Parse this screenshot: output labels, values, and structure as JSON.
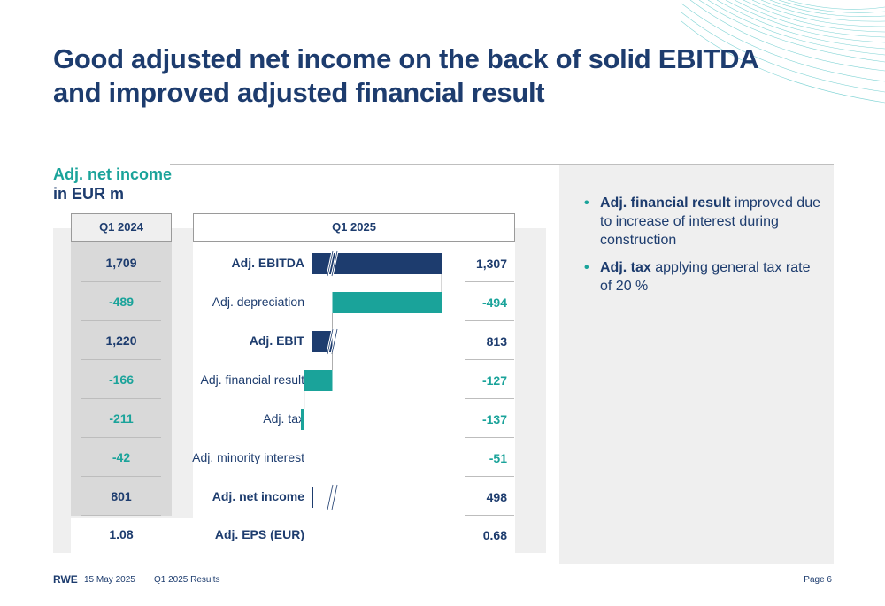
{
  "title_line1": "Good adjusted net income on the back of solid EBITDA",
  "title_line2": "and improved adjusted financial result",
  "subhead_line1": "Adj. net income",
  "subhead_line2": "in EUR m",
  "colors": {
    "navy": "#1d3c6e",
    "teal": "#1aa39a"
  },
  "chart_data": {
    "type": "bar",
    "subtype": "waterfall",
    "unit": "EUR m",
    "col_q24": "Q1 2024",
    "col_q25": "Q1 2025",
    "categories": [
      "Adj. EBITDA",
      "Adj. depreciation",
      "Adj. EBIT",
      "Adj. financial result",
      "Adj. tax",
      "Adj. minority interest",
      "Adj. net income"
    ],
    "bold_categories": [
      "Adj. EBITDA",
      "Adj. EBIT",
      "Adj. net income"
    ],
    "series": [
      {
        "name": "Q1 2024",
        "values": [
          1709,
          -489,
          1220,
          -166,
          -211,
          -42,
          801
        ],
        "labels": [
          "1,709",
          "-489",
          "1,220",
          "-166",
          "-211",
          "-42",
          "801"
        ]
      },
      {
        "name": "Q1 2025",
        "values": [
          1307,
          -494,
          813,
          -127,
          -137,
          -51,
          498
        ],
        "labels": [
          "1,307",
          "-494",
          "813",
          "-127",
          "-137",
          "-51",
          "498"
        ]
      }
    ],
    "totals": [
      true,
      false,
      true,
      false,
      false,
      false,
      true
    ],
    "axis_break": true,
    "eps_label": "Adj. EPS (EUR)",
    "eps_q24": "1.08",
    "eps_q25": "0.68"
  },
  "bullets": [
    {
      "bold": "Adj. financial result",
      "rest": " improved due to increase of interest during construction"
    },
    {
      "bold": "Adj. tax",
      "rest": " applying general tax rate of 20 %"
    }
  ],
  "footer": {
    "logo": "RWE",
    "date": "15 May 2025",
    "doc": "Q1 2025 Results",
    "page": "Page 6"
  }
}
